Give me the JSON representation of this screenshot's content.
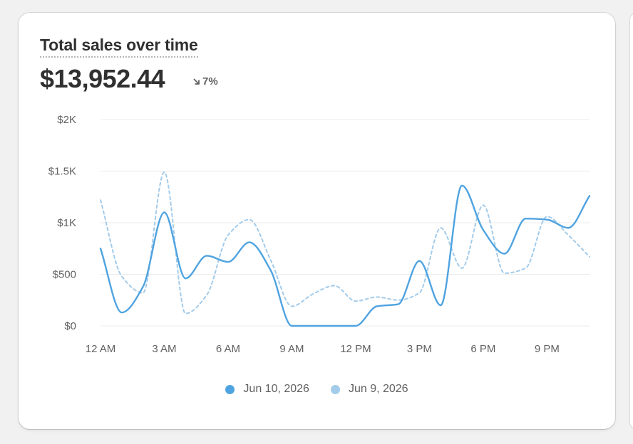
{
  "card": {
    "title": "Total sales over time",
    "total_value": "$13,952.44",
    "change_percent": "7%",
    "change_direction": "down"
  },
  "colors": {
    "current": "#4fa3e0",
    "previous": "#a3cbea",
    "grid": "#ebebeb",
    "axis_text": "#616161"
  },
  "chart_data": {
    "type": "line",
    "xlabel": "",
    "ylabel": "",
    "ylim": [
      0,
      2000
    ],
    "y_ticks": [
      0,
      500,
      1000,
      1500,
      2000
    ],
    "y_tick_labels": [
      "$0",
      "$500",
      "$1K",
      "$1.5K",
      "$2K"
    ],
    "x_ticks": [
      0,
      3,
      6,
      9,
      12,
      15,
      18,
      21
    ],
    "x_tick_labels": [
      "12 AM",
      "3 AM",
      "6 AM",
      "9 AM",
      "12 PM",
      "3 PM",
      "6 PM",
      "9 PM"
    ],
    "x_range": [
      0,
      23
    ],
    "x": [
      0,
      1,
      2,
      3,
      4,
      5,
      6,
      7,
      8,
      9,
      10,
      11,
      12,
      13,
      14,
      15,
      16,
      17,
      18,
      19,
      20,
      21,
      22,
      23
    ],
    "grid": true,
    "legend_position": "bottom",
    "series": [
      {
        "name": "Jun 10, 2026",
        "style": "solid",
        "values": [
          750,
          130,
          380,
          1100,
          460,
          680,
          620,
          810,
          540,
          0,
          0,
          0,
          0,
          190,
          210,
          630,
          200,
          1360,
          930,
          700,
          1040,
          1030,
          950,
          1260
        ]
      },
      {
        "name": "Jun 9, 2026",
        "style": "dashed",
        "values": [
          1220,
          480,
          320,
          1490,
          120,
          300,
          880,
          1030,
          640,
          190,
          310,
          390,
          240,
          280,
          250,
          320,
          950,
          560,
          1170,
          510,
          560,
          1060,
          880,
          670
        ]
      }
    ]
  }
}
